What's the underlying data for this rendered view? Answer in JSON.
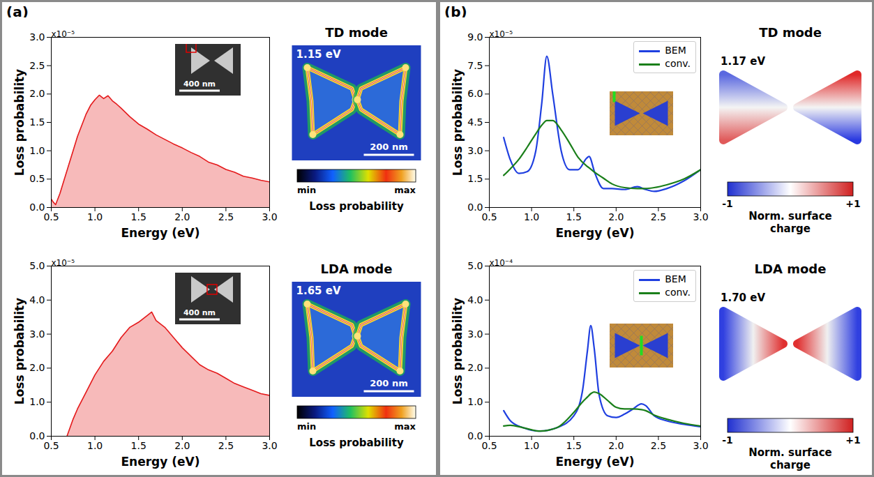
{
  "panel_labels": [
    "(a)",
    "(b)"
  ],
  "chart_data": [
    {
      "type": "area",
      "color": "#e41a1c",
      "x": [
        0.5,
        0.52,
        0.55,
        0.6,
        0.65,
        0.7,
        0.75,
        0.8,
        0.85,
        0.9,
        0.95,
        1.0,
        1.05,
        1.1,
        1.15,
        1.2,
        1.25,
        1.3,
        1.4,
        1.5,
        1.6,
        1.7,
        1.8,
        1.9,
        2.0,
        2.1,
        2.2,
        2.3,
        2.4,
        2.5,
        2.6,
        2.7,
        2.8,
        2.9,
        3.0
      ],
      "values": [
        0.15,
        0.1,
        0.05,
        0.25,
        0.5,
        0.75,
        1.0,
        1.25,
        1.45,
        1.65,
        1.8,
        1.9,
        1.98,
        1.92,
        1.97,
        1.88,
        1.82,
        1.75,
        1.6,
        1.47,
        1.38,
        1.28,
        1.2,
        1.12,
        1.05,
        0.97,
        0.9,
        0.8,
        0.75,
        0.67,
        0.62,
        0.55,
        0.52,
        0.48,
        0.45
      ],
      "xlim": [
        0.5,
        3.0
      ],
      "xticks": [
        0.5,
        {
          "value": 1,
          "label": "1.0"
        },
        1.5,
        {
          "value": 2,
          "label": "2.0"
        },
        2.5,
        {
          "value": 3,
          "label": "3.0"
        }
      ],
      "ylim": [
        0,
        3
      ],
      "yticks": [
        {
          "value": 0,
          "label": "0.0"
        },
        0.5,
        {
          "value": 1,
          "label": "1.0"
        },
        1.5,
        {
          "value": 2,
          "label": "2.0"
        },
        2.5,
        {
          "value": 3,
          "label": "3.0"
        }
      ],
      "x_label": "Energy (eV)",
      "y_label": "Loss probability",
      "y_multiplier": "x10⁻⁵",
      "annotations": [
        "400 nm"
      ]
    },
    {
      "type": "area",
      "color": "#e41a1c",
      "x": [
        0.68,
        0.75,
        0.8,
        0.9,
        1.0,
        1.1,
        1.2,
        1.3,
        1.4,
        1.5,
        1.6,
        1.65,
        1.7,
        1.8,
        1.9,
        2.0,
        2.1,
        2.2,
        2.3,
        2.4,
        2.5,
        2.6,
        2.7,
        2.8,
        2.9,
        3.0
      ],
      "values": [
        0,
        0.5,
        0.8,
        1.3,
        1.8,
        2.2,
        2.5,
        2.9,
        3.2,
        3.35,
        3.55,
        3.65,
        3.4,
        3.2,
        2.9,
        2.6,
        2.35,
        2.1,
        1.95,
        1.85,
        1.7,
        1.55,
        1.45,
        1.35,
        1.25,
        1.2
      ],
      "xlim": [
        0.5,
        3.0
      ],
      "xticks": [
        0.5,
        {
          "value": 1,
          "label": "1.0"
        },
        1.5,
        {
          "value": 2,
          "label": "2.0"
        },
        2.5,
        {
          "value": 3,
          "label": "3.0"
        }
      ],
      "ylim": [
        0,
        5
      ],
      "yticks": [
        {
          "value": 0,
          "label": "0.0"
        },
        {
          "value": 1,
          "label": "1.0"
        },
        {
          "value": 2,
          "label": "2.0"
        },
        {
          "value": 3,
          "label": "3.0"
        },
        {
          "value": 4,
          "label": "4.0"
        },
        {
          "value": 5,
          "label": "5.0"
        }
      ],
      "x_label": "Energy (eV)",
      "y_label": "Loss probability",
      "y_multiplier": "x10⁻⁵",
      "annotations": [
        "400 nm"
      ]
    },
    {
      "type": "line",
      "legend": "upper right",
      "x": [
        0.67,
        0.75,
        0.85,
        0.95,
        1.05,
        1.12,
        1.18,
        1.25,
        1.35,
        1.45,
        1.55,
        1.65,
        1.68,
        1.75,
        1.85,
        1.95,
        2.1,
        2.25,
        2.35,
        2.45,
        2.6,
        2.8,
        3.0
      ],
      "series": [
        {
          "name": "BEM",
          "color": "#1f3fe0",
          "values": [
            3.7,
            2.5,
            1.8,
            1.9,
            3.0,
            5.5,
            8.0,
            6.0,
            3.0,
            2.0,
            2.0,
            2.6,
            2.7,
            1.8,
            1.0,
            1.0,
            0.95,
            1.1,
            0.95,
            0.85,
            1.0,
            1.4,
            2.0
          ]
        },
        {
          "name": "conv.",
          "color": "#1a7f1a",
          "values": [
            1.7,
            2.05,
            2.55,
            3.2,
            3.9,
            4.35,
            4.6,
            4.6,
            4.1,
            3.4,
            2.65,
            2.2,
            2.1,
            1.85,
            1.55,
            1.25,
            1.05,
            1.0,
            1.0,
            1.05,
            1.2,
            1.5,
            2.0
          ]
        }
      ],
      "xlim": [
        0.5,
        3.0
      ],
      "xticks": [
        0.5,
        {
          "value": 1,
          "label": "1.0"
        },
        1.5,
        {
          "value": 2,
          "label": "2.0"
        },
        2.5,
        {
          "value": 3,
          "label": "3.0"
        }
      ],
      "ylim": [
        0,
        9
      ],
      "yticks": [
        {
          "value": 0,
          "label": "0.0"
        },
        1.5,
        {
          "value": 3,
          "label": "3.0"
        },
        4.5,
        {
          "value": 6,
          "label": "6.0"
        },
        7.5,
        {
          "value": 9,
          "label": "9.0"
        }
      ],
      "x_label": "Energy (eV)",
      "y_label": "Loss probability",
      "y_multiplier": "x10⁻⁵"
    },
    {
      "type": "line",
      "legend": "upper right",
      "x": [
        0.67,
        0.75,
        0.9,
        1.1,
        1.3,
        1.5,
        1.6,
        1.66,
        1.7,
        1.74,
        1.8,
        1.9,
        2.0,
        2.1,
        2.2,
        2.3,
        2.35,
        2.45,
        2.6,
        2.8,
        3.0
      ],
      "series": [
        {
          "name": "BEM",
          "color": "#1f3fe0",
          "values": [
            0.75,
            0.45,
            0.25,
            0.15,
            0.25,
            0.6,
            1.3,
            2.5,
            3.25,
            2.6,
            1.2,
            0.6,
            0.55,
            0.65,
            0.8,
            0.95,
            0.9,
            0.6,
            0.45,
            0.35,
            0.28
          ]
        },
        {
          "name": "conv.",
          "color": "#1a7f1a",
          "values": [
            0.3,
            0.32,
            0.25,
            0.15,
            0.25,
            0.7,
            1.0,
            1.15,
            1.25,
            1.3,
            1.25,
            1.05,
            0.85,
            0.8,
            0.8,
            0.78,
            0.75,
            0.62,
            0.5,
            0.38,
            0.3
          ]
        }
      ],
      "xlim": [
        0.5,
        3.0
      ],
      "xticks": [
        0.5,
        {
          "value": 1,
          "label": "1.0"
        },
        1.5,
        {
          "value": 2,
          "label": "2.0"
        },
        2.5,
        {
          "value": 3,
          "label": "3.0"
        }
      ],
      "ylim": [
        0,
        5
      ],
      "yticks": [
        {
          "value": 0,
          "label": "0.0"
        },
        {
          "value": 1,
          "label": "1.0"
        },
        {
          "value": 2,
          "label": "2.0"
        },
        {
          "value": 3,
          "label": "3.0"
        },
        {
          "value": 4,
          "label": "4.0"
        },
        {
          "value": 5,
          "label": "5.0"
        }
      ],
      "x_label": "Energy (eV)",
      "y_label": "Loss probability",
      "y_multiplier": "x10⁻⁴"
    }
  ],
  "images": [
    {
      "title": "TD mode",
      "energy": "1.15 eV",
      "scale_bar": "200 nm",
      "colorbar": {
        "labels": [
          "min",
          "max"
        ],
        "title": "Loss probability"
      }
    },
    {
      "title": "LDA mode",
      "energy": "1.65 eV",
      "scale_bar": "200 nm",
      "colorbar": {
        "labels": [
          "min",
          "max"
        ],
        "title": "Loss probability"
      }
    },
    {
      "title": "TD mode",
      "energy": "1.17 eV",
      "colorbar": {
        "range": [
          -1,
          1
        ],
        "ticks": [
          -1,
          {
            "value": 1,
            "label": "+1"
          }
        ],
        "title": "Norm. surface charge"
      }
    },
    {
      "title": "LDA mode",
      "energy": "1.70 eV",
      "colorbar": {
        "range": [
          -1,
          1
        ],
        "ticks": [
          -1,
          {
            "value": 1,
            "label": "+1"
          }
        ],
        "title": "Norm. surface charge"
      }
    }
  ]
}
